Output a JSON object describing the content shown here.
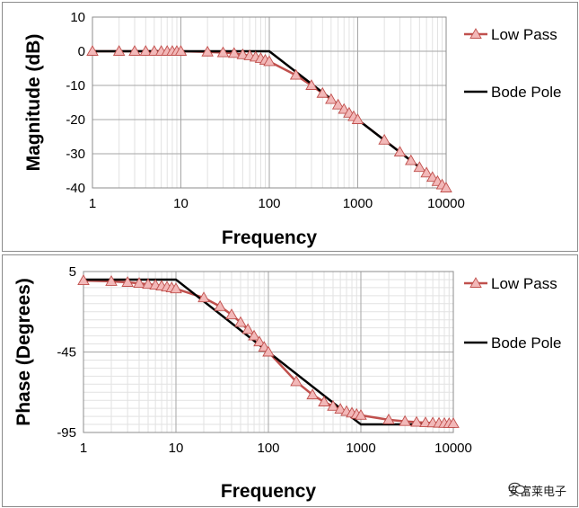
{
  "chart_data": [
    {
      "type": "line",
      "xscale": "log",
      "xlabel": "Frequency",
      "ylabel": "Magnitude (dB)",
      "xlim": [
        1,
        10000
      ],
      "ylim": [
        -40,
        10
      ],
      "xticks": [
        1,
        10,
        100,
        1000,
        10000
      ],
      "xtick_labels": [
        "1",
        "10",
        "100",
        "1000",
        "10000"
      ],
      "yticks": [
        10,
        0,
        -10,
        -20,
        -30,
        -40
      ],
      "ytick_labels": [
        "10",
        "0",
        "-10",
        "-20",
        "-30",
        "-40"
      ],
      "grid": true,
      "legend_position": "right",
      "series": [
        {
          "name": "Low Pass",
          "color": "#c0504d",
          "marker": "triangle",
          "marker_color": "#f2b8b8",
          "x": [
            1,
            2,
            3,
            4,
            5,
            6,
            7,
            8,
            9,
            10,
            20,
            30,
            40,
            50,
            60,
            70,
            80,
            90,
            100,
            200,
            300,
            400,
            500,
            600,
            700,
            800,
            900,
            1000,
            2000,
            3000,
            4000,
            5000,
            6000,
            7000,
            8000,
            9000,
            10000
          ],
          "y": [
            0,
            0,
            0,
            0,
            0,
            0,
            0,
            0,
            0,
            0,
            -0.2,
            -0.4,
            -0.6,
            -1,
            -1.3,
            -1.7,
            -2.1,
            -2.6,
            -3,
            -7,
            -10,
            -12.3,
            -14.1,
            -15.7,
            -17,
            -18.1,
            -19.1,
            -20,
            -26,
            -29.5,
            -32,
            -34,
            -35.6,
            -36.9,
            -38.1,
            -39.1,
            -40
          ]
        },
        {
          "name": "Bode Pole",
          "color": "#000000",
          "x": [
            1,
            100,
            10000
          ],
          "y": [
            0,
            0,
            -40
          ]
        }
      ]
    },
    {
      "type": "line",
      "xscale": "log",
      "xlabel": "Frequency",
      "ylabel": "Phase (Degrees)",
      "xlim": [
        1,
        10000
      ],
      "ylim": [
        -95,
        5
      ],
      "xticks": [
        1,
        10,
        100,
        1000,
        10000
      ],
      "xtick_labels": [
        "1",
        "10",
        "100",
        "1000",
        "10000"
      ],
      "yticks": [
        5,
        -45,
        -95
      ],
      "ytick_labels": [
        "5",
        "-45",
        "-95"
      ],
      "grid": true,
      "legend_position": "right",
      "series": [
        {
          "name": "Low Pass",
          "color": "#c0504d",
          "marker": "triangle",
          "marker_color": "#f2b8b8",
          "x": [
            1,
            2,
            3,
            4,
            5,
            6,
            7,
            8,
            9,
            10,
            20,
            30,
            40,
            50,
            60,
            70,
            80,
            90,
            100,
            200,
            300,
            400,
            500,
            600,
            700,
            800,
            900,
            1000,
            2000,
            3000,
            4000,
            5000,
            6000,
            7000,
            8000,
            9000,
            10000
          ],
          "y": [
            -0.6,
            -1.1,
            -1.7,
            -2.3,
            -2.9,
            -3.4,
            -4,
            -4.6,
            -5.1,
            -5.7,
            -11.3,
            -16.7,
            -21.8,
            -26.6,
            -31,
            -35,
            -38.7,
            -42,
            -45,
            -63.4,
            -71.6,
            -76,
            -78.7,
            -80.5,
            -81.9,
            -82.9,
            -83.7,
            -84.3,
            -87.1,
            -88.1,
            -88.6,
            -88.9,
            -89,
            -89.2,
            -89.3,
            -89.4,
            -89.4
          ]
        },
        {
          "name": "Bode Pole",
          "color": "#000000",
          "x": [
            1,
            10,
            1000,
            10000
          ],
          "y": [
            0,
            0,
            -90,
            -90
          ]
        }
      ]
    }
  ],
  "watermark": {
    "text": "安富莱电子",
    "icon": "wechat-icon"
  }
}
